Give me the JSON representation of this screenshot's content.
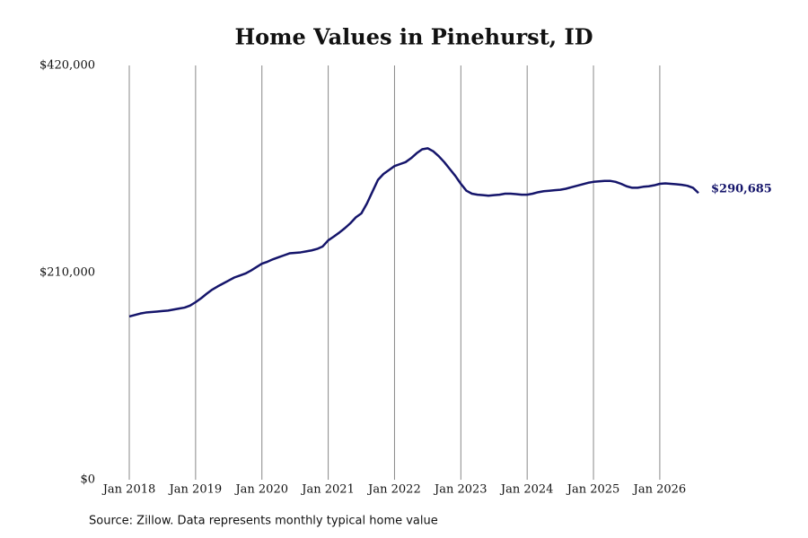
{
  "chart_data": {
    "type": "line",
    "title": "Home Values in Pinehurst, ID",
    "source": "Source: Zillow. Data represents monthly typical home value",
    "color": "#15156b",
    "grid": "x",
    "xlim": [
      "2018-01",
      "2026-08"
    ],
    "ylim": [
      0,
      420000
    ],
    "yticks": [
      {
        "value": 0,
        "label": "$0"
      },
      {
        "value": 210000,
        "label": "$210,000"
      },
      {
        "value": 420000,
        "label": "$420,000"
      }
    ],
    "xticks": [
      {
        "value": "2018-01",
        "label": "Jan 2018"
      },
      {
        "value": "2019-01",
        "label": "Jan 2019"
      },
      {
        "value": "2020-01",
        "label": "Jan 2020"
      },
      {
        "value": "2021-01",
        "label": "Jan 2021"
      },
      {
        "value": "2022-01",
        "label": "Jan 2022"
      },
      {
        "value": "2023-01",
        "label": "Jan 2023"
      },
      {
        "value": "2024-01",
        "label": "Jan 2024"
      },
      {
        "value": "2025-01",
        "label": "Jan 2025"
      },
      {
        "value": "2026-01",
        "label": "Jan 2026"
      }
    ],
    "x": [
      "2018-01",
      "2018-02",
      "2018-03",
      "2018-04",
      "2018-05",
      "2018-06",
      "2018-07",
      "2018-08",
      "2018-09",
      "2018-10",
      "2018-11",
      "2018-12",
      "2019-01",
      "2019-02",
      "2019-03",
      "2019-04",
      "2019-05",
      "2019-06",
      "2019-07",
      "2019-08",
      "2019-09",
      "2019-10",
      "2019-11",
      "2019-12",
      "2020-01",
      "2020-02",
      "2020-03",
      "2020-04",
      "2020-05",
      "2020-06",
      "2020-07",
      "2020-08",
      "2020-09",
      "2020-10",
      "2020-11",
      "2020-12",
      "2021-01",
      "2021-02",
      "2021-03",
      "2021-04",
      "2021-05",
      "2021-06",
      "2021-07",
      "2021-08",
      "2021-09",
      "2021-10",
      "2021-11",
      "2021-12",
      "2022-01",
      "2022-02",
      "2022-03",
      "2022-04",
      "2022-05",
      "2022-06",
      "2022-07",
      "2022-08",
      "2022-09",
      "2022-10",
      "2022-11",
      "2022-12",
      "2023-01",
      "2023-02",
      "2023-03",
      "2023-04",
      "2023-05",
      "2023-06",
      "2023-07",
      "2023-08",
      "2023-09",
      "2023-10",
      "2023-11",
      "2023-12",
      "2024-01",
      "2024-02",
      "2024-03",
      "2024-04",
      "2024-05",
      "2024-06",
      "2024-07",
      "2024-08",
      "2024-09",
      "2024-10",
      "2024-11",
      "2024-12",
      "2025-01",
      "2025-02",
      "2025-03",
      "2025-04",
      "2025-05",
      "2025-06",
      "2025-07",
      "2025-08",
      "2025-09",
      "2025-10",
      "2025-11",
      "2025-12",
      "2026-01",
      "2026-02",
      "2026-03",
      "2026-04",
      "2026-05",
      "2026-06",
      "2026-07",
      "2026-08"
    ],
    "values": [
      165500,
      167000,
      168500,
      169500,
      170000,
      170500,
      171000,
      171500,
      172500,
      173500,
      174500,
      176500,
      180000,
      184000,
      188500,
      192700,
      196000,
      199000,
      202000,
      205000,
      207000,
      209000,
      212000,
      215500,
      219000,
      221000,
      223500,
      225500,
      227500,
      229500,
      230000,
      230500,
      231500,
      232500,
      234000,
      236500,
      242700,
      246500,
      250500,
      255000,
      260000,
      266000,
      270000,
      280000,
      292000,
      304000,
      310000,
      314000,
      318000,
      320000,
      322000,
      326000,
      331000,
      335000,
      336000,
      333000,
      328000,
      322000,
      315000,
      308000,
      300000,
      293000,
      290000,
      289000,
      288500,
      288000,
      288500,
      289000,
      290000,
      290000,
      289500,
      289000,
      289000,
      290000,
      291500,
      292500,
      293000,
      293500,
      294000,
      295000,
      296500,
      298000,
      299500,
      301000,
      302000,
      302500,
      303000,
      303000,
      302000,
      300000,
      297500,
      296000,
      296000,
      297000,
      297500,
      298500,
      300000,
      300500,
      300000,
      299500,
      299000,
      298000,
      296000,
      290685
    ],
    "value_labels": [
      null,
      null,
      null,
      null,
      null,
      null,
      null,
      null,
      null,
      null,
      null,
      null,
      null,
      null,
      null,
      null,
      null,
      null,
      null,
      null,
      null,
      null,
      null,
      null,
      null,
      null,
      null,
      null,
      null,
      null,
      null,
      null,
      null,
      null,
      null,
      null,
      null,
      null,
      null,
      null,
      null,
      null,
      null,
      null,
      null,
      null,
      null,
      null,
      null,
      null,
      null,
      null,
      null,
      null,
      null,
      null,
      null,
      null,
      null,
      null,
      null,
      null,
      null,
      null,
      null,
      null,
      null,
      null,
      null,
      null,
      null,
      null,
      null,
      null,
      null,
      null,
      null,
      null,
      null,
      null,
      null,
      null,
      null,
      null,
      null,
      null,
      null,
      null,
      null,
      null,
      null,
      null,
      null,
      null,
      null,
      null,
      null,
      null,
      null,
      null,
      null,
      null,
      null,
      "$290,685"
    ]
  }
}
